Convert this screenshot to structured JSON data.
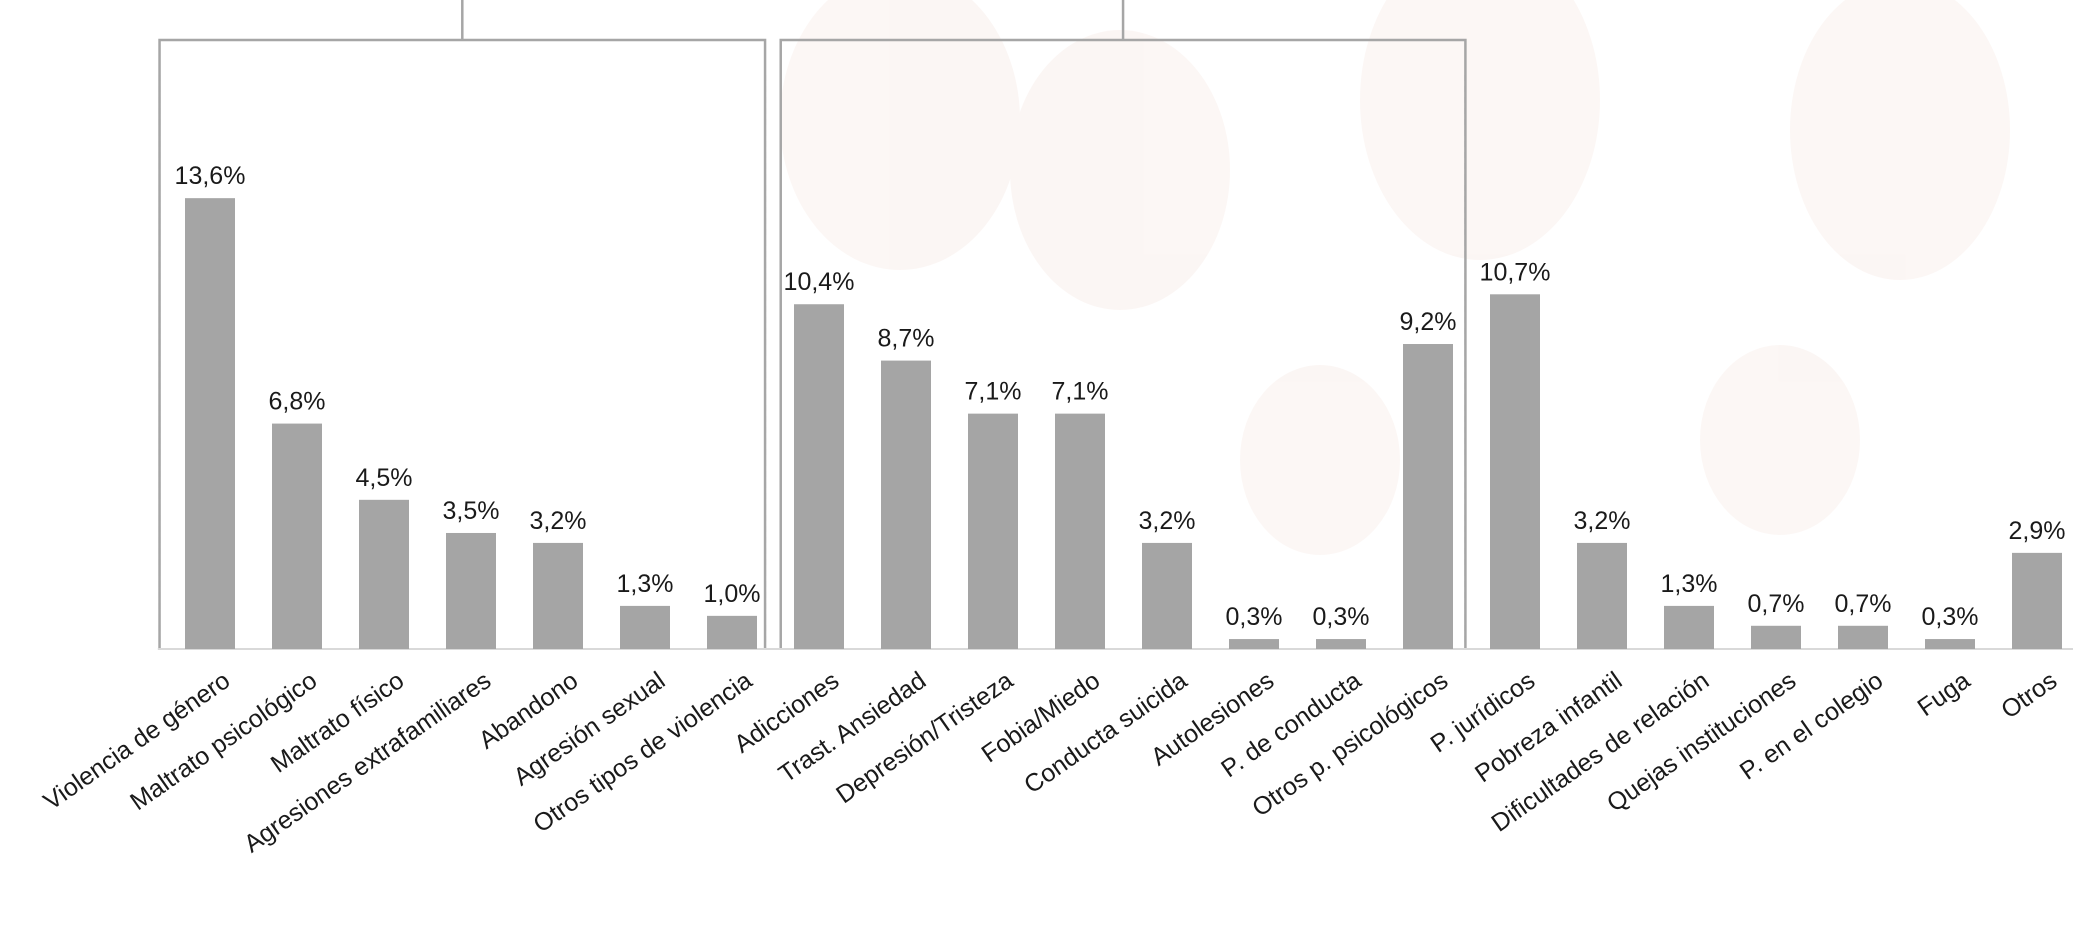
{
  "chart_data": {
    "type": "bar",
    "categories": [
      "Violencia de género",
      "Maltrato psicológico",
      "Maltrato físico",
      "Agresiones extrafamiliares",
      "Abandono",
      "Agresión sexual",
      "Otros tipos de violencia",
      "Adicciones",
      "Trast. Ansiedad",
      "Depresión/Tristeza",
      "Fobia/Miedo",
      "Conducta suicida",
      "Autolesiones",
      "P. de conducta",
      "Otros p. psicológicos",
      "P. jurídicos",
      "Pobreza infantil",
      "Dificultades de relación",
      "Quejas instituciones",
      "P. en el colegio",
      "Fuga",
      "Otros"
    ],
    "values": [
      13.6,
      6.8,
      4.5,
      3.5,
      3.2,
      1.3,
      1.0,
      10.4,
      8.7,
      7.1,
      7.1,
      3.2,
      0.3,
      0.3,
      9.2,
      10.7,
      3.2,
      1.3,
      0.7,
      0.7,
      0.3,
      2.9
    ],
    "value_labels": [
      "13,6%",
      "6,8%",
      "4,5%",
      "3,5%",
      "3,2%",
      "1,3%",
      "1,0%",
      "10,4%",
      "8,7%",
      "7,1%",
      "7,1%",
      "3,2%",
      "0,3%",
      "0,3%",
      "9,2%",
      "10,7%",
      "3,2%",
      "1,3%",
      "0,7%",
      "0,7%",
      "0,3%",
      "2,9%"
    ],
    "color": "#a5a5a5"
  }
}
